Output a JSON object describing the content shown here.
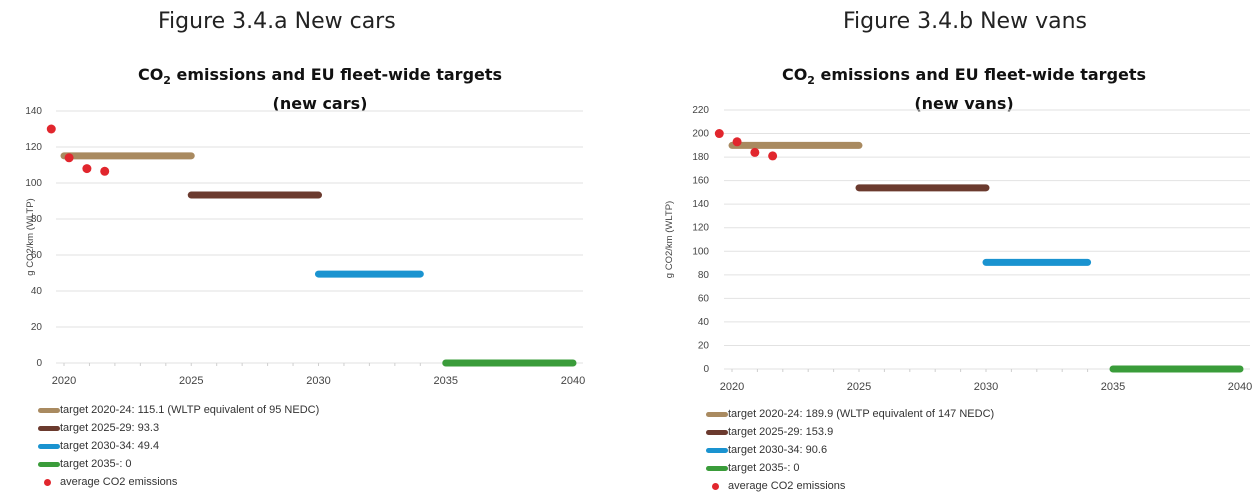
{
  "panels": [
    {
      "figure_title": "Figure 3.4.a New cars",
      "chart_title_line1": "CO",
      "chart_title_sub": "2",
      "chart_title_rest": " emissions and EU fleet-wide targets",
      "chart_title_line2": "(new cars)"
    },
    {
      "figure_title": "Figure 3.4.b New vans",
      "chart_title_line1": "CO",
      "chart_title_sub": "2",
      "chart_title_rest": " emissions and EU fleet-wide targets",
      "chart_title_line2": "(new vans)"
    }
  ],
  "chart_data": [
    {
      "type": "scatter",
      "title": "CO2 emissions and EU fleet-wide targets (new cars)",
      "xlabel": "",
      "ylabel": "g CO2/km (WLTP)",
      "xlim": [
        2020,
        2040
      ],
      "ylim": [
        0,
        140
      ],
      "xticks": [
        2020,
        2025,
        2030,
        2035,
        2040
      ],
      "yticks": [
        0,
        20,
        40,
        60,
        80,
        100,
        120,
        140
      ],
      "legend_position": "bottom-left",
      "series": [
        {
          "name": "target 2020-24: 115.1 (WLTP equivalent of 95 NEDC)",
          "kind": "line",
          "color": "#a98a60",
          "x": [
            2020,
            2025
          ],
          "y": [
            115.1,
            115.1
          ]
        },
        {
          "name": "target 2025-29: 93.3",
          "kind": "line",
          "color": "#6b3a2e",
          "x": [
            2025,
            2030
          ],
          "y": [
            93.3,
            93.3
          ]
        },
        {
          "name": "target 2030-34: 49.4",
          "kind": "line",
          "color": "#1a93d0",
          "x": [
            2030,
            2034
          ],
          "y": [
            49.4,
            49.4
          ]
        },
        {
          "name": "target 2035-: 0",
          "kind": "line",
          "color": "#3a9c3a",
          "x": [
            2035,
            2040
          ],
          "y": [
            0,
            0
          ]
        },
        {
          "name": "average CO2 emissions",
          "kind": "scatter",
          "color": "#e1262d",
          "x": [
            2019.5,
            2020.2,
            2020.9,
            2021.6
          ],
          "y": [
            130,
            114,
            108,
            106.5
          ]
        }
      ]
    },
    {
      "type": "scatter",
      "title": "CO2 emissions and EU fleet-wide targets (new vans)",
      "xlabel": "",
      "ylabel": "g CO2/km (WLTP)",
      "xlim": [
        2020,
        2040
      ],
      "ylim": [
        0,
        220
      ],
      "xticks": [
        2020,
        2025,
        2030,
        2035,
        2040
      ],
      "yticks": [
        0,
        20,
        40,
        60,
        80,
        100,
        120,
        140,
        160,
        180,
        200,
        220
      ],
      "legend_position": "bottom-left",
      "series": [
        {
          "name": "target 2020-24: 189.9 (WLTP equivalent of 147 NEDC)",
          "kind": "line",
          "color": "#a98a60",
          "x": [
            2020,
            2025
          ],
          "y": [
            189.9,
            189.9
          ]
        },
        {
          "name": "target 2025-29: 153.9",
          "kind": "line",
          "color": "#6b3a2e",
          "x": [
            2025,
            2030
          ],
          "y": [
            153.9,
            153.9
          ]
        },
        {
          "name": "target 2030-34: 90.6",
          "kind": "line",
          "color": "#1a93d0",
          "x": [
            2030,
            2034
          ],
          "y": [
            90.6,
            90.6
          ]
        },
        {
          "name": "target 2035-: 0",
          "kind": "line",
          "color": "#3a9c3a",
          "x": [
            2035,
            2040
          ],
          "y": [
            0,
            0
          ]
        },
        {
          "name": "average CO2 emissions",
          "kind": "scatter",
          "color": "#e1262d",
          "x": [
            2019.5,
            2020.2,
            2020.9,
            2021.6
          ],
          "y": [
            200,
            193,
            184,
            181
          ]
        }
      ]
    }
  ]
}
